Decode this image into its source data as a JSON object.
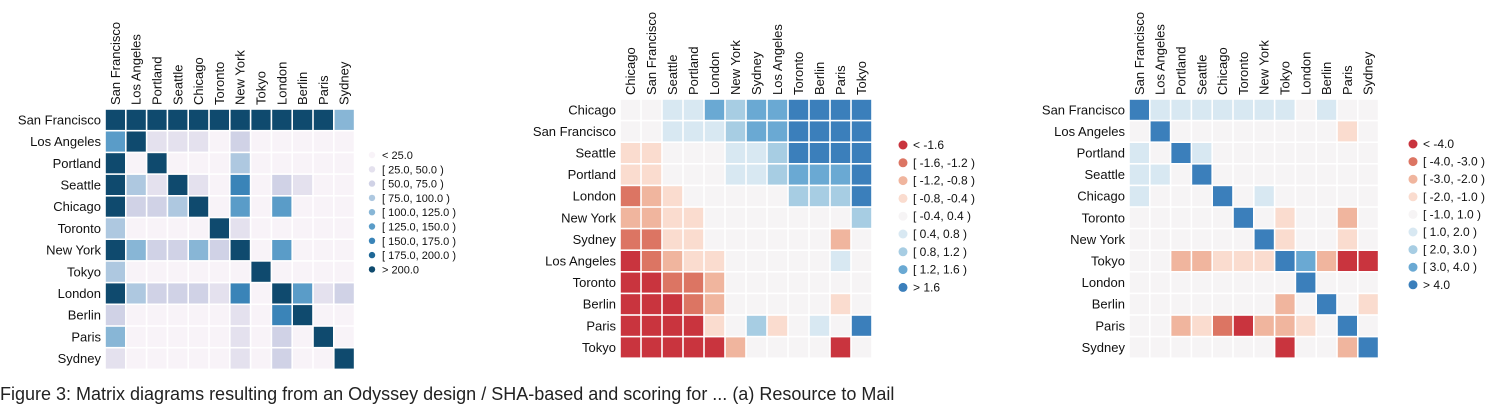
{
  "caption": "Figure 3: Matrix diagrams resulting from an Odyssey design / SHA-based and scoring for ... (a) Resource to Mail",
  "chart_data": [
    {
      "type": "heatmap",
      "rows": [
        "San Francisco",
        "Los Angeles",
        "Portland",
        "Seattle",
        "Chicago",
        "Toronto",
        "New York",
        "Tokyo",
        "London",
        "Berlin",
        "Paris",
        "Sydney"
      ],
      "cols": [
        "San Francisco",
        "Los Angeles",
        "Portland",
        "Seattle",
        "Chicago",
        "Toronto",
        "New York",
        "Tokyo",
        "London",
        "Berlin",
        "Paris",
        "Sydney"
      ],
      "values": [
        [
          250,
          250,
          250,
          250,
          250,
          250,
          250,
          250,
          250,
          250,
          250,
          110
        ],
        [
          140,
          250,
          30,
          40,
          30,
          10,
          55,
          10,
          10,
          10,
          10,
          10
        ],
        [
          230,
          15,
          250,
          15,
          10,
          10,
          80,
          10,
          10,
          10,
          10,
          10
        ],
        [
          240,
          80,
          40,
          250,
          40,
          20,
          150,
          10,
          70,
          30,
          10,
          20
        ],
        [
          240,
          60,
          50,
          90,
          250,
          20,
          140,
          10,
          130,
          20,
          10,
          20
        ],
        [
          90,
          15,
          10,
          15,
          15,
          250,
          30,
          10,
          10,
          10,
          10,
          10
        ],
        [
          230,
          110,
          60,
          50,
          110,
          60,
          230,
          10,
          140,
          20,
          20,
          15
        ],
        [
          80,
          10,
          10,
          10,
          10,
          10,
          20,
          250,
          10,
          10,
          10,
          10
        ],
        [
          230,
          80,
          60,
          60,
          60,
          40,
          160,
          20,
          250,
          130,
          40,
          60
        ],
        [
          60,
          10,
          10,
          10,
          10,
          10,
          30,
          10,
          150,
          250,
          10,
          10
        ],
        [
          100,
          10,
          10,
          10,
          10,
          10,
          30,
          10,
          60,
          20,
          250,
          10
        ],
        [
          40,
          10,
          10,
          10,
          10,
          10,
          30,
          10,
          60,
          10,
          10,
          250
        ]
      ],
      "legend": {
        "placement": "right",
        "labels": [
          "< 25.0",
          "[ 25.0, 50.0 )",
          "[ 50.0, 75.0 )",
          "[ 75.0, 100.0 )",
          "[ 100.0, 125.0 )",
          "[ 125.0, 150.0 )",
          "[ 150.0, 175.0 )",
          "[ 175.0, 200.0 )",
          "> 200.0"
        ],
        "thresholds": [
          25,
          50,
          75,
          100,
          125,
          150,
          175,
          200
        ],
        "colors": [
          "#f8f3f8",
          "#e4e1ee",
          "#d0d2e6",
          "#aec8e0",
          "#88b6d6",
          "#5a9cc8",
          "#3a84b8",
          "#1e6796",
          "#0f4a6e"
        ]
      }
    },
    {
      "type": "heatmap",
      "rows": [
        "Chicago",
        "San Francisco",
        "Seattle",
        "Portland",
        "London",
        "New York",
        "Sydney",
        "Los Angeles",
        "Toronto",
        "Berlin",
        "Paris",
        "Tokyo"
      ],
      "cols": [
        "Chicago",
        "San Francisco",
        "Seattle",
        "Portland",
        "London",
        "New York",
        "Sydney",
        "Los Angeles",
        "Toronto",
        "Berlin",
        "Paris",
        "Tokyo"
      ],
      "values": [
        [
          0,
          0,
          0.5,
          0.5,
          1.4,
          1.0,
          1.3,
          1.4,
          1.7,
          1.7,
          1.7,
          1.7
        ],
        [
          0,
          0,
          0.5,
          0.5,
          0.6,
          1.0,
          1.3,
          1.4,
          1.7,
          1.7,
          1.7,
          1.7
        ],
        [
          -0.5,
          -0.5,
          0,
          0,
          0.1,
          0.5,
          0.5,
          0.9,
          1.7,
          1.7,
          1.7,
          1.7
        ],
        [
          -0.5,
          -0.5,
          0,
          0,
          0.1,
          0.5,
          0.5,
          0.9,
          1.4,
          1.4,
          1.4,
          1.7
        ],
        [
          -1.3,
          -0.9,
          -0.5,
          0,
          0,
          0,
          0,
          0,
          0.9,
          0.9,
          0.9,
          1.7
        ],
        [
          -0.9,
          -0.9,
          -0.5,
          -0.5,
          0,
          0,
          0,
          0,
          0,
          0,
          0,
          0.9
        ],
        [
          -1.3,
          -1.3,
          -0.5,
          -0.5,
          0,
          0,
          0,
          0,
          0,
          0,
          -0.9,
          0
        ],
        [
          -1.7,
          -1.3,
          -0.9,
          -0.5,
          -0.5,
          0,
          0,
          0,
          0,
          0,
          0.5,
          0
        ],
        [
          -1.7,
          -1.7,
          -1.3,
          -1.3,
          -0.9,
          0,
          0,
          0,
          0,
          0,
          0,
          0
        ],
        [
          -1.7,
          -1.7,
          -1.7,
          -1.3,
          -0.9,
          0,
          0,
          0,
          0,
          0,
          -0.5,
          0
        ],
        [
          -1.7,
          -1.7,
          -1.7,
          -1.7,
          -0.5,
          0,
          0.9,
          -0.5,
          0,
          0.5,
          0,
          1.7
        ],
        [
          -1.7,
          -1.7,
          -1.7,
          -1.7,
          -1.7,
          -0.9,
          0,
          0,
          0,
          0,
          -1.7,
          0
        ]
      ],
      "legend": {
        "placement": "right",
        "labels": [
          "< -1.6",
          "[ -1.6, -1.2 )",
          "[ -1.2, -0.8 )",
          "[ -0.8, -0.4 )",
          "[ -0.4, 0.4 )",
          "[ 0.4, 0.8 )",
          "[ 0.8, 1.2 )",
          "[ 1.2, 1.6 )",
          "> 1.6"
        ],
        "thresholds": [
          -1.6,
          -1.2,
          -0.8,
          -0.4,
          0.4,
          0.8,
          1.2,
          1.6
        ],
        "colors": [
          "#c9343e",
          "#dc7563",
          "#f0b59e",
          "#fadccf",
          "#f6f4f5",
          "#d8e8f2",
          "#a7cde3",
          "#6aa9d3",
          "#3b7fbb"
        ]
      }
    },
    {
      "type": "heatmap",
      "rows": [
        "San Francisco",
        "Los Angeles",
        "Portland",
        "Seattle",
        "Chicago",
        "Toronto",
        "New York",
        "Tokyo",
        "London",
        "Berlin",
        "Paris",
        "Sydney"
      ],
      "cols": [
        "San Francisco",
        "Los Angeles",
        "Portland",
        "Seattle",
        "Chicago",
        "Toronto",
        "New York",
        "Tokyo",
        "London",
        "Berlin",
        "Paris",
        "Sydney"
      ],
      "values": [
        [
          4.5,
          1.5,
          1.5,
          1.5,
          1.5,
          1.5,
          1.5,
          1.5,
          0,
          1.5,
          0,
          0
        ],
        [
          0,
          4.5,
          0,
          0,
          0,
          0,
          0,
          0,
          0,
          0,
          -1.5,
          0
        ],
        [
          1.5,
          0,
          4.5,
          1.5,
          0,
          0,
          0,
          0,
          0,
          0,
          0,
          0
        ],
        [
          1.5,
          1.5,
          0,
          4.5,
          0,
          0,
          0,
          0,
          0,
          0,
          0,
          0
        ],
        [
          1.5,
          0,
          0,
          0,
          4.5,
          0,
          1.5,
          0,
          0,
          0,
          0,
          0
        ],
        [
          0,
          0,
          0,
          0,
          0,
          4.5,
          0,
          -1.5,
          0,
          0,
          -2.5,
          0
        ],
        [
          0,
          0,
          0,
          0,
          0,
          0,
          4.5,
          -1.5,
          0,
          0,
          -1.5,
          0
        ],
        [
          0,
          0,
          -2.5,
          -2.5,
          -1.5,
          -1.5,
          -1.5,
          4.5,
          3.5,
          -2.5,
          -4.5,
          -4.5
        ],
        [
          0,
          0,
          0,
          0,
          0,
          0,
          0,
          0,
          4.5,
          0,
          0,
          0
        ],
        [
          0,
          0,
          0,
          0,
          0,
          0,
          0,
          -2.5,
          0,
          4.5,
          0,
          -1.5
        ],
        [
          0,
          0,
          -2.5,
          -1.5,
          -3.5,
          -4.5,
          -2.5,
          -2.5,
          -1.5,
          0,
          4.5,
          0
        ],
        [
          0,
          0,
          0,
          0,
          0,
          0,
          0,
          -4.5,
          0,
          0,
          -2.5,
          4.5
        ]
      ],
      "legend": {
        "placement": "right",
        "labels": [
          "< -4.0",
          "[ -4.0, -3.0 )",
          "[ -3.0, -2.0 )",
          "[ -2.0, -1.0 )",
          "[ -1.0, 1.0 )",
          "[ 1.0, 2.0 )",
          "[ 2.0, 3.0 )",
          "[ 3.0, 4.0 )",
          "> 4.0"
        ],
        "thresholds": [
          -4,
          -3,
          -2,
          -1,
          1,
          2,
          3,
          4
        ],
        "colors": [
          "#c9343e",
          "#dc7563",
          "#f0b59e",
          "#fadccf",
          "#f6f4f5",
          "#d8e8f2",
          "#a7cde3",
          "#6aa9d3",
          "#3b7fbb"
        ]
      }
    }
  ]
}
